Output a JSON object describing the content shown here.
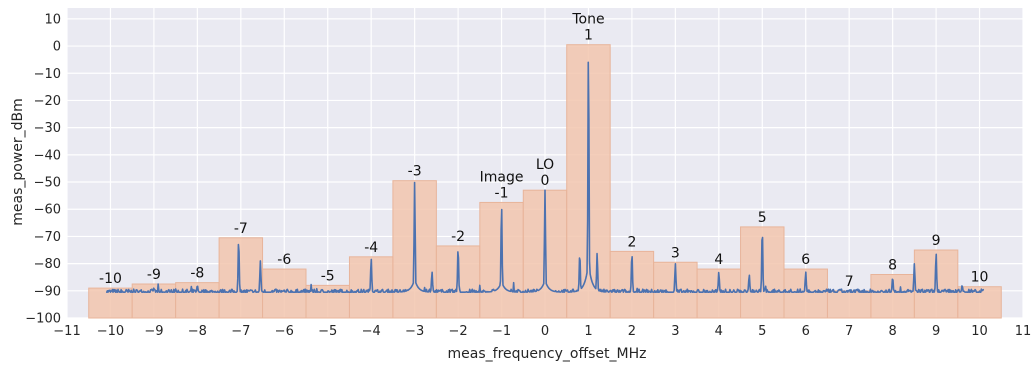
{
  "chart_data": {
    "type": "line",
    "xlabel": "meas_frequency_offset_MHz",
    "ylabel": "meas_power_dBm",
    "xlim": [
      -11,
      11
    ],
    "ylim": [
      -100,
      14
    ],
    "x_ticks": [
      -11,
      -10,
      -9,
      -8,
      -7,
      -6,
      -5,
      -4,
      -3,
      -2,
      -1,
      0,
      1,
      2,
      3,
      4,
      5,
      6,
      7,
      8,
      9,
      10,
      11
    ],
    "y_ticks": [
      10,
      0,
      -10,
      -20,
      -30,
      -40,
      -50,
      -60,
      -70,
      -80,
      -90,
      -100
    ],
    "grid": true,
    "legend": "none",
    "colors": {
      "background": "#eaeaf2",
      "grid": "#ffffff",
      "bars_fill": "#f2c6ae",
      "bars_edge": "#e8b49a",
      "line": "#4c72b0"
    },
    "bins": {
      "width_mhz": 1,
      "bin_index": [
        -10,
        -9,
        -8,
        -7,
        -6,
        -5,
        -4,
        -3,
        -2,
        -1,
        0,
        1,
        2,
        3,
        4,
        5,
        6,
        7,
        8,
        9,
        10
      ],
      "max_power_dbm": [
        -89,
        -87.5,
        -87,
        -70.5,
        -82,
        -88,
        -77.5,
        -49.5,
        -73.5,
        -57.5,
        -53,
        0.5,
        -75.5,
        -79.5,
        -82,
        -66.5,
        -82,
        -90,
        -84,
        -75,
        -88.5
      ],
      "labels": [
        "-10",
        "-9",
        "-8",
        "-7",
        "-6",
        "-5",
        "-4",
        "-3",
        "-2",
        "-1",
        "0",
        "1",
        "2",
        "3",
        "4",
        "5",
        "6",
        "7",
        "8",
        "9",
        "10"
      ]
    },
    "annotations": [
      {
        "x": -1,
        "text": "Image"
      },
      {
        "x": 0,
        "text": "LO"
      },
      {
        "x": 1,
        "text": "Tone"
      }
    ],
    "trace": {
      "noise_floor_dbm": -90.5,
      "x_range": [
        -10.1,
        10.1
      ],
      "peaks": [
        {
          "x": -9,
          "y": -89
        },
        {
          "x": -8,
          "y": -88
        },
        {
          "x": -7.05,
          "y": -71
        },
        {
          "x": -6.55,
          "y": -79
        },
        {
          "x": -4,
          "y": -78
        },
        {
          "x": -3,
          "y": -50
        },
        {
          "x": -2.6,
          "y": -83
        },
        {
          "x": -2,
          "y": -74
        },
        {
          "x": -1,
          "y": -58
        },
        {
          "x": 0,
          "y": -53
        },
        {
          "x": 0.8,
          "y": -76
        },
        {
          "x": 1,
          "y": 0
        },
        {
          "x": 1.2,
          "y": -76
        },
        {
          "x": 2,
          "y": -76
        },
        {
          "x": 3,
          "y": -80
        },
        {
          "x": 4,
          "y": -83
        },
        {
          "x": 4.7,
          "y": -84
        },
        {
          "x": 5,
          "y": -67
        },
        {
          "x": 6,
          "y": -83
        },
        {
          "x": 8,
          "y": -85
        },
        {
          "x": 8.5,
          "y": -80
        },
        {
          "x": 9,
          "y": -76
        },
        {
          "x": 9.6,
          "y": -88
        }
      ]
    }
  }
}
